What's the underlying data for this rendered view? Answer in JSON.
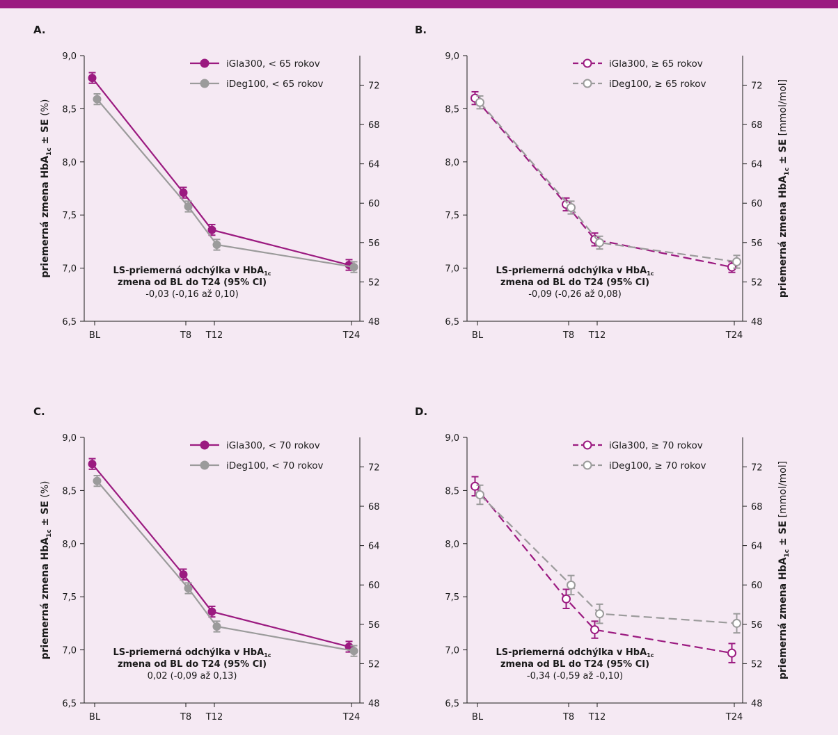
{
  "colors": {
    "purple": "#9b1a80",
    "gray": "#9b9b9b",
    "axis": "#1a1a1a",
    "topbar": "#9b1a80"
  },
  "chart_data": [
    {
      "panel": "A.",
      "type": "line",
      "x": [
        "BL",
        "T8",
        "T12",
        "T24"
      ],
      "x_values": [
        0,
        8,
        12,
        24
      ],
      "ylim": [
        6.5,
        9.0
      ],
      "yticks": [
        "6,5",
        "7,0",
        "7,5",
        "8,0",
        "8,5",
        "9,0"
      ],
      "y2lim": [
        48,
        75
      ],
      "y2ticks": [
        "48",
        "52",
        "56",
        "60",
        "64",
        "68",
        "72"
      ],
      "ylabel": "priemerná zmena HbA1c ± SE (%)",
      "ylabel_parts": [
        "priemerná zmena HbA",
        "1c",
        " ± SE",
        " (%)"
      ],
      "y2label_parts": [],
      "series": [
        {
          "name": "iGla300, < 65 rokov",
          "color": "purple",
          "style": "solid",
          "marker": "filled",
          "x_offset": -0.25,
          "values": [
            8.79,
            7.71,
            7.36,
            7.03
          ],
          "se": [
            0.05,
            0.05,
            0.05,
            0.05
          ]
        },
        {
          "name": "iDeg100, < 65 rokov",
          "color": "gray",
          "style": "solid",
          "marker": "filled",
          "x_offset": 0.25,
          "values": [
            8.59,
            7.58,
            7.22,
            7.01
          ],
          "se": [
            0.05,
            0.05,
            0.05,
            0.05
          ]
        }
      ],
      "annotation": {
        "line1_main": "LS-priemerná odchýlka v HbA",
        "line1_sub": "1c",
        "line2": "zmena od BL do T24 (95% CI)",
        "line3": "-0,03 (-0,16 až 0,10)"
      }
    },
    {
      "panel": "B.",
      "type": "line",
      "x": [
        "BL",
        "T8",
        "T12",
        "T24"
      ],
      "x_values": [
        0,
        8,
        12,
        24
      ],
      "ylim": [
        6.5,
        9.0
      ],
      "yticks": [
        "6,5",
        "7,0",
        "7,5",
        "8,0",
        "8,5",
        "9,0"
      ],
      "y2lim": [
        48,
        75
      ],
      "y2ticks": [
        "48",
        "52",
        "56",
        "60",
        "64",
        "68",
        "72"
      ],
      "ylabel": "priemerná zmena HbA1c ± SE [mmol/mol]",
      "ylabel_parts": [],
      "y2label_parts": [
        "priemerná zmena HbA",
        "1c",
        " ± SE",
        " [mmol/mol]"
      ],
      "series": [
        {
          "name": "iGla300, ≥ 65 rokov",
          "color": "purple",
          "style": "dashed",
          "marker": "open",
          "x_offset": -0.25,
          "values": [
            8.6,
            7.6,
            7.27,
            7.01
          ],
          "se": [
            0.06,
            0.06,
            0.06,
            0.05
          ]
        },
        {
          "name": "iDeg100, ≥ 65 rokov",
          "color": "gray",
          "style": "dashed",
          "marker": "open",
          "x_offset": 0.25,
          "values": [
            8.56,
            7.57,
            7.24,
            7.06
          ],
          "se": [
            0.06,
            0.06,
            0.06,
            0.06
          ]
        }
      ],
      "annotation": {
        "line1_main": "LS-priemerná odchýlka v HbA",
        "line1_sub": "1c",
        "line2": "zmena od BL do T24 (95% CI)",
        "line3": "-0,09 (-0,26 až 0,08)"
      }
    },
    {
      "panel": "C.",
      "type": "line",
      "x": [
        "BL",
        "T8",
        "T12",
        "T24"
      ],
      "x_values": [
        0,
        8,
        12,
        24
      ],
      "ylim": [
        6.5,
        9.0
      ],
      "yticks": [
        "6,5",
        "7,0",
        "7,5",
        "8,0",
        "8,5",
        "9,0"
      ],
      "y2lim": [
        48,
        75
      ],
      "y2ticks": [
        "48",
        "52",
        "56",
        "60",
        "64",
        "68",
        "72"
      ],
      "ylabel": "priemerná zmena HbA1c ± SE (%)",
      "ylabel_parts": [
        "priemerná zmena HbA",
        "1c",
        " ± SE",
        " (%)"
      ],
      "y2label_parts": [],
      "series": [
        {
          "name": "iGla300, < 70 rokov",
          "color": "purple",
          "style": "solid",
          "marker": "filled",
          "x_offset": -0.25,
          "values": [
            8.75,
            7.71,
            7.36,
            7.03
          ],
          "se": [
            0.05,
            0.05,
            0.05,
            0.05
          ]
        },
        {
          "name": "iDeg100, < 70 rokov",
          "color": "gray",
          "style": "solid",
          "marker": "filled",
          "x_offset": 0.25,
          "values": [
            8.59,
            7.58,
            7.22,
            6.99
          ],
          "se": [
            0.05,
            0.05,
            0.05,
            0.05
          ]
        }
      ],
      "annotation": {
        "line1_main": "LS-priemerná odchýlka v HbA",
        "line1_sub": "1c",
        "line2": "zmena od BL do T24 (95% CI)",
        "line3": "0,02 (-0,09 až 0,13)"
      }
    },
    {
      "panel": "D.",
      "type": "line",
      "x": [
        "BL",
        "T8",
        "T12",
        "T24"
      ],
      "x_values": [
        0,
        8,
        12,
        24
      ],
      "ylim": [
        6.5,
        9.0
      ],
      "yticks": [
        "6,5",
        "7,0",
        "7,5",
        "8,0",
        "8,5",
        "9,0"
      ],
      "y2lim": [
        48,
        75
      ],
      "y2ticks": [
        "48",
        "52",
        "56",
        "60",
        "64",
        "68",
        "72"
      ],
      "ylabel": "priemerná zmena HbA1c ± SE [mmol/mol]",
      "ylabel_parts": [],
      "y2label_parts": [
        "priemerná zmena HbA",
        "1c",
        " ± SE",
        " [mmol/mol]"
      ],
      "series": [
        {
          "name": "iGla300, ≥ 70 rokov",
          "color": "purple",
          "style": "dashed",
          "marker": "open",
          "x_offset": -0.25,
          "values": [
            8.54,
            7.48,
            7.19,
            6.97
          ],
          "se": [
            0.09,
            0.09,
            0.08,
            0.09
          ]
        },
        {
          "name": "iDeg100, ≥ 70 rokov",
          "color": "gray",
          "style": "dashed",
          "marker": "open",
          "x_offset": 0.25,
          "values": [
            8.46,
            7.61,
            7.34,
            7.25
          ],
          "se": [
            0.09,
            0.09,
            0.09,
            0.09
          ]
        }
      ],
      "annotation": {
        "line1_main": "LS-priemerná odchýlka v HbA",
        "line1_sub": "1c",
        "line2": "zmena od BL do T24 (95% CI)",
        "line3": "-0,34 (-0,59 až -0,10)"
      }
    }
  ]
}
